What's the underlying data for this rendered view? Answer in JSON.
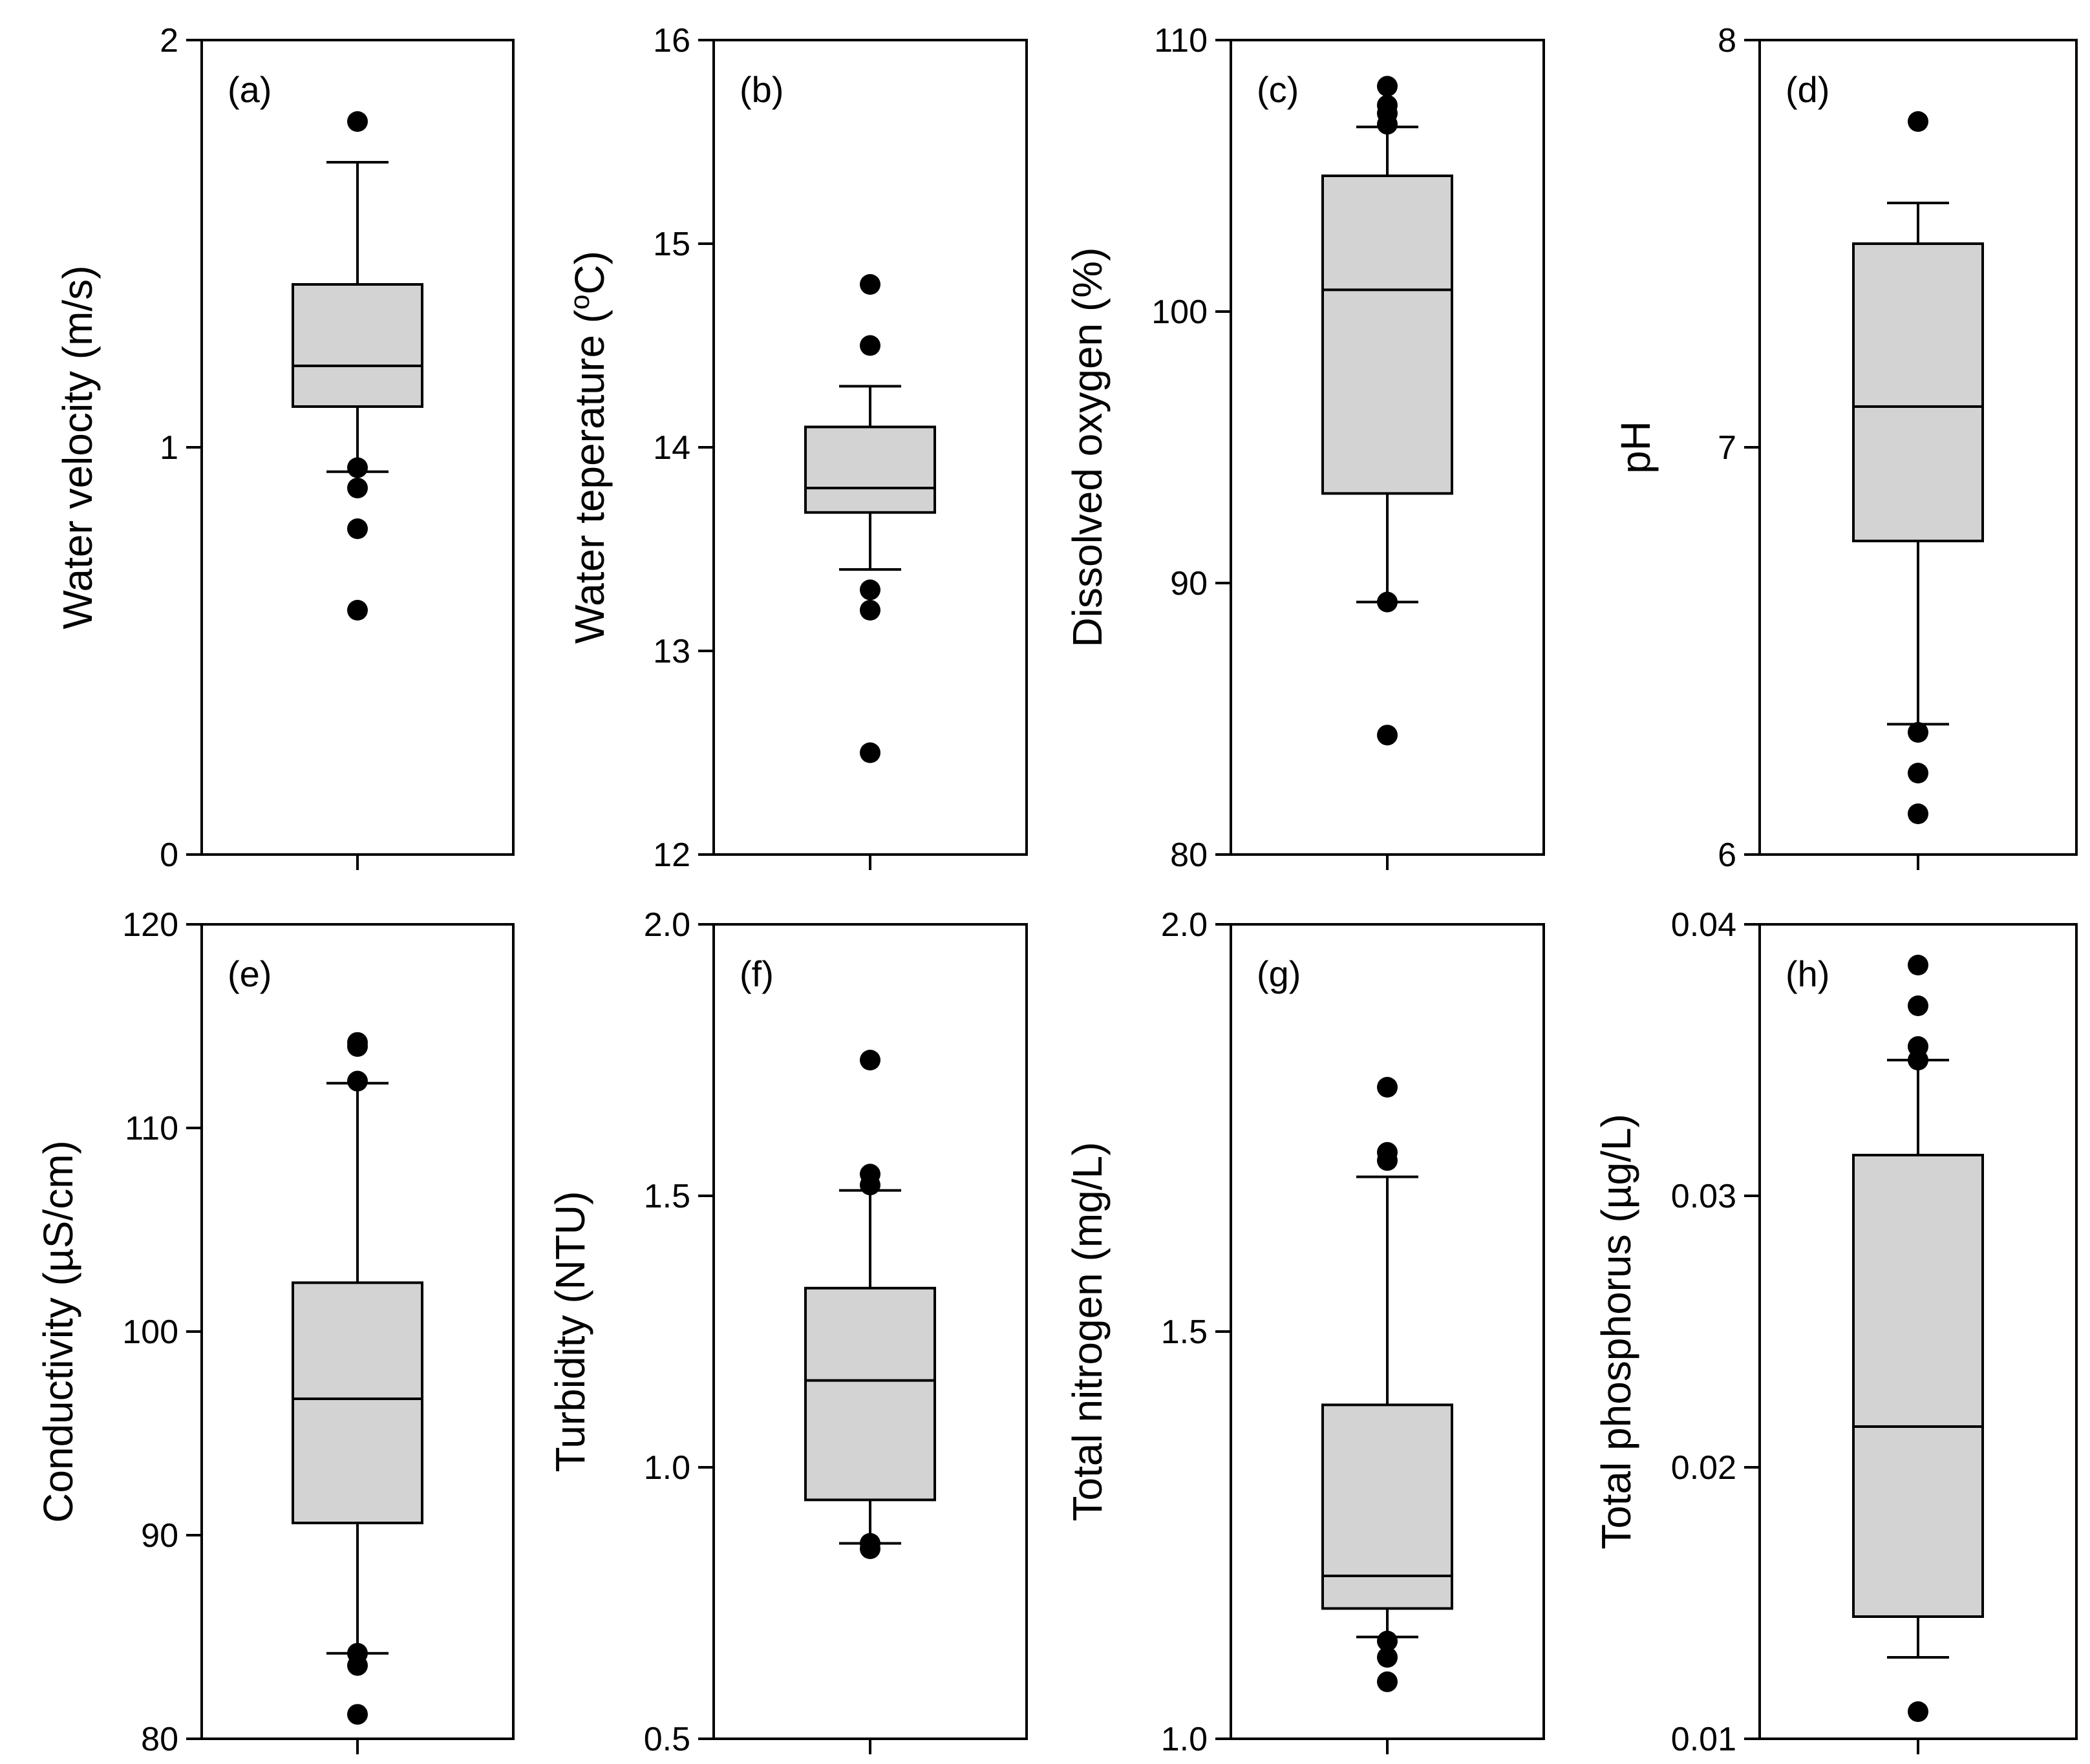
{
  "colors": {
    "box_fill": "#d3d3d3",
    "line": "#000000",
    "outlier": "#000000",
    "background": "#ffffff"
  },
  "chart_data": [
    {
      "type": "box",
      "panel_label": "(a)",
      "ylabel": "Water velocity (m/s)",
      "ylim": [
        0,
        2
      ],
      "yticks": [
        0,
        1,
        2
      ],
      "tick_labels": [
        "0",
        "1",
        "2"
      ],
      "box": {
        "whisker_low": 0.94,
        "q1": 1.1,
        "median": 1.2,
        "q3": 1.4,
        "whisker_high": 1.7
      },
      "outliers": [
        1.8,
        0.95,
        0.9,
        0.8,
        0.6
      ]
    },
    {
      "type": "box",
      "panel_label": "(b)",
      "ylabel": "Water teperature (",
      "ylabel_sup": "o",
      "ylabel_tail": "C)",
      "ylim": [
        12,
        16
      ],
      "yticks": [
        12,
        13,
        14,
        15,
        16
      ],
      "tick_labels": [
        "12",
        "13",
        "14",
        "15",
        "16"
      ],
      "box": {
        "whisker_low": 13.4,
        "q1": 13.68,
        "median": 13.8,
        "q3": 14.1,
        "whisker_high": 14.3
      },
      "outliers": [
        14.8,
        14.5,
        13.3,
        13.2,
        12.5
      ]
    },
    {
      "type": "box",
      "panel_label": "(c)",
      "ylabel": "Dissolved oxygen (%)",
      "ylim": [
        80,
        110
      ],
      "yticks": [
        80,
        90,
        100,
        110
      ],
      "tick_labels": [
        "80",
        "90",
        "100",
        "110"
      ],
      "box": {
        "whisker_low": 89.3,
        "q1": 93.3,
        "median": 100.8,
        "q3": 105.0,
        "whisker_high": 106.8
      },
      "outliers": [
        108.3,
        107.6,
        107.3,
        106.9,
        89.3,
        84.4
      ]
    },
    {
      "type": "box",
      "panel_label": "(d)",
      "ylabel": "pH",
      "ylim": [
        6,
        8
      ],
      "yticks": [
        6,
        7,
        8
      ],
      "tick_labels": [
        "6",
        "7",
        "8"
      ],
      "box": {
        "whisker_low": 6.32,
        "q1": 6.77,
        "median": 7.1,
        "q3": 7.5,
        "whisker_high": 7.6
      },
      "outliers": [
        7.8,
        6.3,
        6.2,
        6.1
      ]
    },
    {
      "type": "box",
      "panel_label": "(e)",
      "ylabel": "Conductivity (µS/cm)",
      "ylim": [
        80,
        120
      ],
      "yticks": [
        80,
        90,
        100,
        110,
        120
      ],
      "tick_labels": [
        "80",
        "90",
        "100",
        "110",
        "120"
      ],
      "box": {
        "whisker_low": 84.2,
        "q1": 90.6,
        "median": 96.7,
        "q3": 102.4,
        "whisker_high": 112.2
      },
      "outliers": [
        114.2,
        114.0,
        112.3,
        84.2,
        83.6,
        81.2
      ]
    },
    {
      "type": "box",
      "panel_label": "(f)",
      "ylabel": "Turbidity (NTU)",
      "ylim": [
        0.5,
        2.0
      ],
      "yticks": [
        0.5,
        1.0,
        1.5,
        2.0
      ],
      "tick_labels": [
        "0.5",
        "1.0",
        "1.5",
        "2.0"
      ],
      "box": {
        "whisker_low": 0.86,
        "q1": 0.94,
        "median": 1.16,
        "q3": 1.33,
        "whisker_high": 1.51
      },
      "outliers": [
        1.75,
        1.54,
        1.52,
        0.86,
        0.85
      ]
    },
    {
      "type": "box",
      "panel_label": "(g)",
      "ylabel": "Total nitrogen (mg/L)",
      "ylim": [
        1.0,
        2.0
      ],
      "yticks": [
        1.0,
        1.5,
        2.0
      ],
      "tick_labels": [
        "1.0",
        "1.5",
        "2.0"
      ],
      "box": {
        "whisker_low": 1.125,
        "q1": 1.16,
        "median": 1.2,
        "q3": 1.41,
        "whisker_high": 1.69
      },
      "outliers": [
        1.8,
        1.72,
        1.71,
        1.12,
        1.1,
        1.07
      ]
    },
    {
      "type": "box",
      "panel_label": "(h)",
      "ylabel": "Total phosphorus (",
      "ylabel_sym": "µg/L",
      "ylabel_tail": ")",
      "ylim": [
        0.01,
        0.04
      ],
      "yticks": [
        0.01,
        0.02,
        0.03,
        0.04
      ],
      "tick_labels": [
        "0.01",
        "0.02",
        "0.03",
        "0.04"
      ],
      "box": {
        "whisker_low": 0.013,
        "q1": 0.0145,
        "median": 0.0215,
        "q3": 0.0315,
        "whisker_high": 0.035
      },
      "outliers": [
        0.0385,
        0.037,
        0.0355,
        0.035,
        0.011
      ]
    }
  ]
}
